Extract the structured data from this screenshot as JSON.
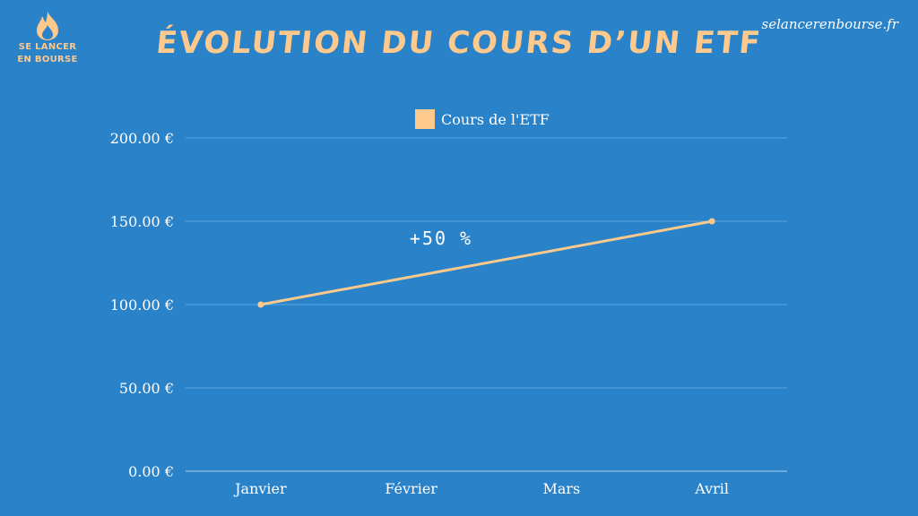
{
  "logo": {
    "line1": "SE LANCER",
    "line2": "EN BOURSE",
    "icon": "flame-icon"
  },
  "title": "ÉVOLUTION DU COURS D’UN ETF",
  "site": "selancerenbourse.fr",
  "colors": {
    "background": "#2a82c9",
    "accent": "#fdc98c",
    "grid": "#5aa6de"
  },
  "chart_data": {
    "type": "line",
    "categories": [
      "Janvier",
      "Février",
      "Mars",
      "Avril"
    ],
    "series": [
      {
        "name": "Cours de l'ETF",
        "points": [
          {
            "x": "Janvier",
            "y": 100
          },
          {
            "x": "Avril",
            "y": 150
          }
        ]
      }
    ],
    "ylim": [
      0,
      200
    ],
    "yticks": [
      0,
      50,
      100,
      150,
      200
    ],
    "ytick_labels": [
      "0.00 €",
      "50.00 €",
      "100.00 €",
      "150.00 €",
      "200.00 €"
    ],
    "annotation": "+50 %",
    "legend_position": "top-center",
    "grid": true
  }
}
